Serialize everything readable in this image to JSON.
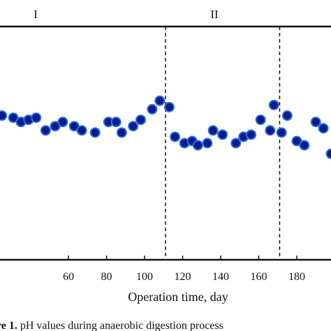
{
  "chart_data": {
    "type": "scatter",
    "xlabel": "Operation time, day",
    "x_ticks": [
      60,
      80,
      100,
      120,
      140,
      160,
      180
    ],
    "xlim": [
      24,
      198
    ],
    "ylim": [
      6.5,
      7.6
    ],
    "phase_labels": [
      "I",
      "II"
    ],
    "phase_boundaries": [
      111,
      171
    ],
    "marker_color": "#0d1b8c",
    "marker_edge_color": "#2a6fe0",
    "series": [
      {
        "x": [
          25,
          31,
          35,
          39,
          43,
          48,
          53,
          57,
          63,
          67,
          74,
          81,
          85,
          88,
          94,
          98,
          104,
          108,
          113,
          116,
          121,
          125,
          128,
          133,
          136,
          141,
          148,
          152,
          156,
          161,
          166,
          168,
          172,
          175,
          180,
          184,
          190,
          194,
          198
        ],
        "y": [
          7.18,
          7.17,
          7.15,
          7.16,
          7.17,
          7.11,
          7.13,
          7.15,
          7.13,
          7.11,
          7.1,
          7.15,
          7.15,
          7.1,
          7.13,
          7.16,
          7.21,
          7.25,
          7.22,
          7.08,
          7.05,
          7.06,
          7.04,
          7.05,
          7.11,
          7.09,
          7.05,
          7.08,
          7.09,
          7.16,
          7.11,
          7.23,
          7.1,
          7.18,
          7.06,
          7.04,
          7.15,
          7.12,
          7.0
        ]
      }
    ]
  },
  "caption": {
    "label": "ure 1.",
    "text": " pH values during anaerobic digestion process"
  }
}
